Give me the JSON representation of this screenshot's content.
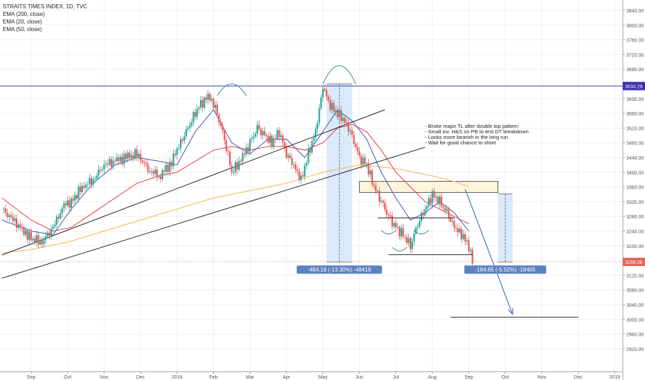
{
  "chart_data": {
    "type": "line",
    "title": "STRAITS TIMES INDEX, 1D, TVC",
    "indicators": [
      "EMA (200, close)",
      "EMA (20, close)",
      "EMA (50, close)"
    ],
    "y_ticks": [
      2920,
      2960,
      3000,
      3040,
      3080,
      3120,
      3160,
      3200,
      3240,
      3280,
      3320,
      3360,
      3400,
      3440,
      3480,
      3520,
      3560,
      3600,
      3640,
      3680,
      3720,
      3760,
      3800,
      3840
    ],
    "ylim": [
      2905,
      3850
    ],
    "x_labels": [
      "Sep",
      "Oct",
      "Nov",
      "Dec",
      "2018",
      "Feb",
      "Mar",
      "Apr",
      "May",
      "Jun",
      "Jul",
      "Aug",
      "Sep",
      "Oct",
      "Nov",
      "Dec",
      "2019"
    ],
    "x_label_index": [
      0,
      1,
      2,
      3,
      4,
      5,
      6,
      7,
      8,
      9,
      10,
      11,
      12,
      13,
      14,
      15,
      16
    ],
    "price_series": {
      "name": "Close",
      "t": [
        -0.8,
        -0.5,
        -0.2,
        0.0,
        0.3,
        0.6,
        0.9,
        1.1,
        1.4,
        1.7,
        2.0,
        2.3,
        2.6,
        2.9,
        3.2,
        3.5,
        3.8,
        4.0,
        4.2,
        4.4,
        4.6,
        4.9,
        5.1,
        5.3,
        5.5,
        5.8,
        6.0,
        6.2,
        6.4,
        6.6,
        6.8,
        7.0,
        7.2,
        7.4,
        7.6,
        7.8,
        8.0,
        8.2,
        8.4,
        8.6,
        8.8,
        9.0,
        9.2,
        9.4,
        9.6,
        9.8,
        10.0,
        10.2,
        10.4,
        10.6,
        10.8,
        11.0,
        11.2,
        11.4,
        11.6,
        11.8,
        12.0,
        12.1
      ],
      "close": [
        3300,
        3270,
        3240,
        3220,
        3210,
        3250,
        3310,
        3320,
        3360,
        3380,
        3420,
        3430,
        3440,
        3450,
        3410,
        3390,
        3420,
        3460,
        3500,
        3540,
        3580,
        3610,
        3560,
        3490,
        3400,
        3440,
        3480,
        3520,
        3500,
        3480,
        3510,
        3450,
        3420,
        3380,
        3450,
        3510,
        3630,
        3580,
        3560,
        3540,
        3500,
        3440,
        3420,
        3360,
        3320,
        3280,
        3250,
        3230,
        3200,
        3260,
        3300,
        3340,
        3320,
        3290,
        3250,
        3230,
        3200,
        3156
      ]
    },
    "ema20_series": {
      "name": "EMA (20, close)",
      "t": [
        -0.8,
        0.0,
        0.6,
        1.1,
        1.7,
        2.3,
        2.9,
        3.5,
        4.0,
        4.5,
        5.0,
        5.5,
        6.0,
        6.5,
        7.0,
        7.5,
        8.0,
        8.4,
        8.8,
        9.2,
        9.6,
        10.0,
        10.4,
        10.8,
        11.2,
        11.6,
        12.0
      ],
      "values": [
        3270,
        3240,
        3230,
        3300,
        3370,
        3420,
        3440,
        3430,
        3420,
        3510,
        3570,
        3480,
        3450,
        3490,
        3490,
        3440,
        3510,
        3570,
        3540,
        3490,
        3400,
        3330,
        3270,
        3290,
        3320,
        3290,
        3240
      ]
    },
    "ema50_series": {
      "name": "EMA (50, close)",
      "t": [
        -0.8,
        0.0,
        0.6,
        1.1,
        1.7,
        2.3,
        2.9,
        3.5,
        4.0,
        4.5,
        5.0,
        5.5,
        6.0,
        6.5,
        7.0,
        7.5,
        8.0,
        8.4,
        8.8,
        9.2,
        9.6,
        10.0,
        10.4,
        10.8,
        11.2,
        11.6,
        12.0
      ],
      "values": [
        3330,
        3270,
        3240,
        3250,
        3290,
        3330,
        3370,
        3390,
        3400,
        3430,
        3460,
        3470,
        3460,
        3470,
        3470,
        3460,
        3480,
        3520,
        3530,
        3510,
        3460,
        3400,
        3360,
        3320,
        3300,
        3280,
        3260
      ]
    },
    "ema200_series": {
      "name": "EMA (200, close)",
      "t": [
        -0.8,
        0.0,
        1.0,
        2.0,
        3.0,
        4.0,
        5.0,
        6.0,
        7.0,
        8.0,
        9.0,
        10.0,
        11.0,
        11.6,
        12.0
      ],
      "values": [
        3180,
        3190,
        3210,
        3240,
        3270,
        3300,
        3330,
        3350,
        3370,
        3400,
        3420,
        3410,
        3390,
        3375,
        3360
      ]
    },
    "trendlines": [
      {
        "t": [
          -0.8,
          9.7
        ],
        "values": [
          3175,
          3570
        ]
      },
      {
        "t": [
          -0.8,
          10.8
        ],
        "values": [
          3112,
          3468
        ]
      }
    ],
    "resistance_level": 3634.29,
    "current_price": 3156.28,
    "support_zone": {
      "t": [
        9.0,
        12.8
      ],
      "values": [
        3345,
        3375
      ]
    },
    "neckline": {
      "t": [
        9.5,
        11.6
      ],
      "values": [
        3276,
        3276
      ]
    },
    "lower_line": {
      "t": [
        9.8,
        12.1
      ],
      "values": [
        3176,
        3176
      ]
    },
    "target_line": {
      "t": [
        11.5,
        15.0
      ],
      "values": [
        3006,
        3006
      ]
    },
    "projection_arrow": {
      "t": [
        11.9,
        13.2
      ],
      "values": [
        3354,
        3014
      ]
    },
    "measure_1": {
      "t": [
        8.1,
        8.8
      ],
      "high": 3640,
      "low": 3156,
      "label": "-484.19 (-13.30%) -48419"
    },
    "measure_2": {
      "t": [
        12.8,
        13.2
      ],
      "high": 3341,
      "low": 3156,
      "label": "-184.65 (-5.52%) -18465"
    },
    "head_arcs": [
      {
        "t": [
          5.1,
          5.9
        ],
        "values": [
          3608,
          3640
        ]
      },
      {
        "t": [
          8.0,
          8.9
        ],
        "values": [
          3640,
          3690
        ]
      }
    ],
    "inverse_shoulder_arcs": [
      {
        "t": [
          9.6,
          10.0
        ],
        "values": [
          3242,
          3232
        ]
      },
      {
        "t": [
          9.9,
          10.3
        ],
        "values": [
          3196,
          3186
        ]
      },
      {
        "t": [
          10.5,
          10.9
        ],
        "values": [
          3242,
          3232
        ]
      }
    ],
    "annotation": [
      "- Broke major TL after double top pattern",
      "- Small inv. H&S on PB to test DT breakdown",
      "- Looks more bearish in the long run",
      "- Wait for good chance to short"
    ],
    "colors": {
      "up": "#26a69a",
      "down": "#ef5350",
      "ema20": "#3f51b5",
      "ema50": "#e53935",
      "ema200": "#f4c06b",
      "resistance": "#3f3fc8",
      "price_tag": "#e0655b",
      "measure_fill": "#cfe3f8",
      "measure_label": "#5a82c0",
      "arrow": "#4f7fc8",
      "zone_fill": "#fff4dc"
    }
  }
}
